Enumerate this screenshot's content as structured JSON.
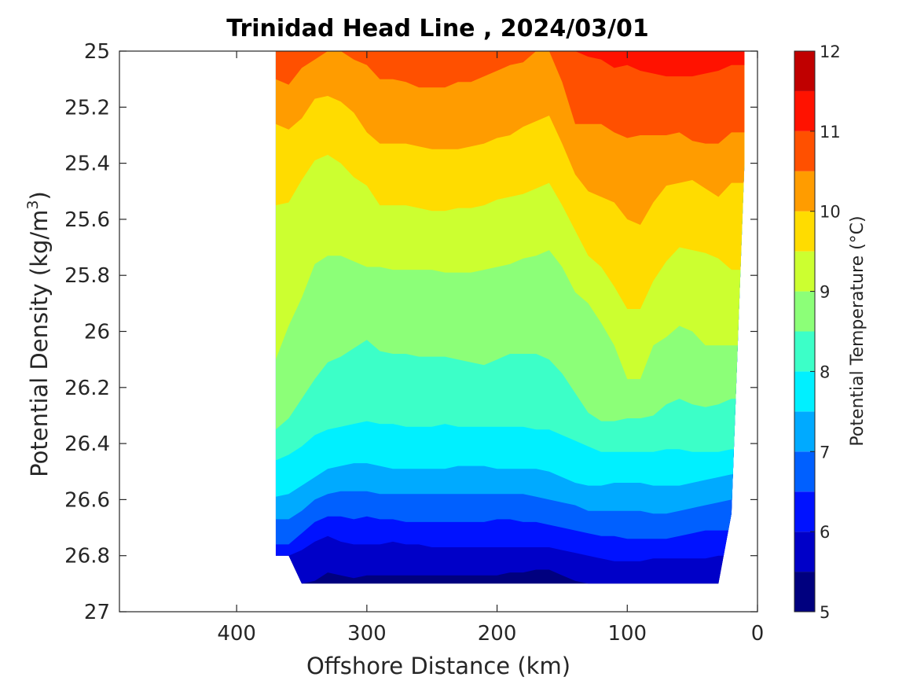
{
  "chart_data": {
    "type": "contour",
    "title": "Trinidad Head Line , 2024/03/01",
    "xlabel": "Offshore Distance (km)",
    "ylabel_main": "Potential Density (kg/m",
    "ylabel_sup": "3",
    "ylabel_end": ")",
    "colorbar_label": "Potential Temperature (°C)",
    "xlim": [
      490,
      0
    ],
    "x_reversed": true,
    "ylim": [
      25.0,
      27.0
    ],
    "y_reversed": true,
    "xticks": [
      400,
      300,
      200,
      100,
      0
    ],
    "xtick_labels": [
      "400",
      "300",
      "200",
      "100",
      "0"
    ],
    "yticks": [
      25.0,
      25.2,
      25.4,
      25.6,
      25.8,
      26.0,
      26.2,
      26.4,
      26.6,
      26.8,
      27.0
    ],
    "ytick_labels": [
      "25",
      "25.2",
      "25.4",
      "25.6",
      "25.8",
      "26",
      "26.2",
      "26.4",
      "26.6",
      "26.8",
      "27"
    ],
    "colorbar_range": [
      5,
      12
    ],
    "colorbar_ticks": [
      5,
      6,
      7,
      8,
      9,
      10,
      11,
      12
    ],
    "colorbar_tick_labels": [
      "5",
      "6",
      "7",
      "8",
      "9",
      "10",
      "11",
      "12"
    ],
    "levels": [
      5.0,
      5.5,
      6.0,
      6.5,
      7.0,
      7.5,
      8.0,
      8.5,
      9.0,
      9.5,
      10.0,
      10.5,
      11.0,
      11.5,
      12.0
    ],
    "colors": [
      "#00007f",
      "#0000c8",
      "#0012ff",
      "#0060ff",
      "#00aaff",
      "#00f0ff",
      "#3cffc8",
      "#8cff78",
      "#ccff30",
      "#ffdc00",
      "#ff9c00",
      "#ff5000",
      "#ff1200",
      "#c00000"
    ],
    "data_domain": {
      "distances": [
        370,
        360,
        350,
        340,
        330,
        320,
        310,
        300,
        290,
        280,
        270,
        260,
        250,
        240,
        230,
        220,
        210,
        200,
        190,
        180,
        170,
        160,
        150,
        140,
        130,
        120,
        110,
        100,
        90,
        80,
        70,
        60,
        50,
        40,
        30,
        20,
        10
      ],
      "max_density": [
        26.8,
        26.8,
        26.9,
        26.9,
        26.9,
        26.9,
        26.9,
        26.9,
        26.9,
        26.9,
        26.9,
        26.9,
        26.9,
        26.9,
        26.9,
        26.9,
        26.9,
        26.9,
        26.9,
        26.9,
        26.9,
        26.9,
        26.9,
        26.9,
        26.9,
        26.9,
        26.9,
        26.9,
        26.9,
        26.9,
        26.9,
        26.9,
        26.9,
        26.9,
        26.9,
        26.65,
        25.4
      ]
    },
    "isotherms": [
      {
        "level": 5.5,
        "density": [
          26.9,
          26.9,
          26.9,
          26.89,
          26.86,
          26.87,
          26.88,
          26.87,
          26.87,
          26.87,
          26.87,
          26.87,
          26.87,
          26.87,
          26.87,
          26.87,
          26.87,
          26.87,
          26.86,
          26.86,
          26.85,
          26.85,
          26.87,
          26.89,
          26.9,
          26.9,
          26.9,
          26.9,
          26.9,
          26.9,
          26.9,
          26.9,
          26.9,
          26.9,
          26.9,
          26.9,
          26.9
        ]
      },
      {
        "level": 6.0,
        "density": [
          26.8,
          26.8,
          26.78,
          26.75,
          26.73,
          26.75,
          26.76,
          26.76,
          26.76,
          26.75,
          26.76,
          26.76,
          26.77,
          26.77,
          26.77,
          26.77,
          26.77,
          26.77,
          26.77,
          26.77,
          26.77,
          26.77,
          26.78,
          26.79,
          26.8,
          26.81,
          26.82,
          26.82,
          26.82,
          26.81,
          26.81,
          26.81,
          26.81,
          26.81,
          26.8,
          26.8,
          26.8
        ]
      },
      {
        "level": 6.5,
        "density": [
          26.76,
          26.76,
          26.72,
          26.68,
          26.66,
          26.66,
          26.67,
          26.66,
          26.67,
          26.67,
          26.68,
          26.68,
          26.68,
          26.68,
          26.68,
          26.68,
          26.68,
          26.67,
          26.67,
          26.68,
          26.68,
          26.69,
          26.7,
          26.71,
          26.72,
          26.73,
          26.73,
          26.74,
          26.74,
          26.74,
          26.74,
          26.73,
          26.72,
          26.71,
          26.71,
          26.71,
          26.71
        ]
      },
      {
        "level": 7.0,
        "density": [
          26.67,
          26.67,
          26.64,
          26.6,
          26.58,
          26.57,
          26.57,
          26.57,
          26.58,
          26.58,
          26.58,
          26.58,
          26.58,
          26.58,
          26.58,
          26.58,
          26.58,
          26.58,
          26.58,
          26.58,
          26.59,
          26.6,
          26.61,
          26.62,
          26.64,
          26.64,
          26.64,
          26.64,
          26.64,
          26.65,
          26.65,
          26.64,
          26.63,
          26.62,
          26.61,
          26.6,
          26.6
        ]
      },
      {
        "level": 7.5,
        "density": [
          26.59,
          26.58,
          26.55,
          26.52,
          26.49,
          26.48,
          26.47,
          26.47,
          26.48,
          26.49,
          26.49,
          26.49,
          26.49,
          26.49,
          26.48,
          26.48,
          26.48,
          26.49,
          26.49,
          26.49,
          26.49,
          26.5,
          26.52,
          26.54,
          26.55,
          26.55,
          26.54,
          26.54,
          26.54,
          26.55,
          26.55,
          26.55,
          26.54,
          26.53,
          26.52,
          26.51,
          26.51
        ]
      },
      {
        "level": 8.0,
        "density": [
          26.46,
          26.44,
          26.41,
          26.37,
          26.35,
          26.34,
          26.33,
          26.32,
          26.33,
          26.33,
          26.34,
          26.34,
          26.34,
          26.33,
          26.34,
          26.34,
          26.34,
          26.34,
          26.34,
          26.34,
          26.35,
          26.35,
          26.37,
          26.39,
          26.41,
          26.43,
          26.43,
          26.43,
          26.43,
          26.43,
          26.42,
          26.42,
          26.43,
          26.43,
          26.43,
          26.42,
          26.42
        ]
      },
      {
        "level": 8.5,
        "density": [
          26.35,
          26.31,
          26.24,
          26.17,
          26.11,
          26.09,
          26.06,
          26.03,
          26.07,
          26.08,
          26.08,
          26.09,
          26.09,
          26.09,
          26.1,
          26.11,
          26.12,
          26.1,
          26.08,
          26.08,
          26.08,
          26.1,
          26.15,
          26.22,
          26.29,
          26.32,
          26.32,
          26.31,
          26.31,
          26.3,
          26.26,
          26.24,
          26.26,
          26.27,
          26.26,
          26.24,
          26.24
        ]
      },
      {
        "level": 9.0,
        "density": [
          26.1,
          25.98,
          25.88,
          25.76,
          25.73,
          25.73,
          25.75,
          25.77,
          25.77,
          25.78,
          25.78,
          25.78,
          25.78,
          25.79,
          25.79,
          25.79,
          25.78,
          25.77,
          25.76,
          25.74,
          25.73,
          25.71,
          25.77,
          25.86,
          25.9,
          25.97,
          26.05,
          26.17,
          26.17,
          26.05,
          26.02,
          25.98,
          26.0,
          26.05,
          26.05,
          26.05,
          26.05
        ]
      },
      {
        "level": 9.5,
        "density": [
          25.55,
          25.54,
          25.46,
          25.39,
          25.37,
          25.4,
          25.45,
          25.48,
          25.55,
          25.55,
          25.55,
          25.56,
          25.57,
          25.57,
          25.56,
          25.56,
          25.55,
          25.53,
          25.52,
          25.51,
          25.49,
          25.47,
          25.55,
          25.64,
          25.73,
          25.77,
          25.84,
          25.92,
          25.92,
          25.82,
          25.75,
          25.7,
          25.71,
          25.72,
          25.74,
          25.78,
          25.78
        ]
      },
      {
        "level": 10.0,
        "density": [
          25.26,
          25.28,
          25.24,
          25.17,
          25.16,
          25.18,
          25.22,
          25.29,
          25.33,
          25.33,
          25.33,
          25.34,
          25.35,
          25.35,
          25.35,
          25.34,
          25.33,
          25.31,
          25.3,
          25.27,
          25.25,
          25.23,
          25.33,
          25.44,
          25.5,
          25.52,
          25.54,
          25.6,
          25.62,
          25.54,
          25.48,
          25.47,
          25.46,
          25.49,
          25.52,
          25.47,
          25.47
        ]
      },
      {
        "level": 10.5,
        "density": [
          25.1,
          25.12,
          25.06,
          25.03,
          25.0,
          25.0,
          25.03,
          25.05,
          25.1,
          25.1,
          25.11,
          25.13,
          25.13,
          25.13,
          25.11,
          25.11,
          25.09,
          25.07,
          25.05,
          25.04,
          25.0,
          25.0,
          25.11,
          25.26,
          25.26,
          25.26,
          25.29,
          25.31,
          25.3,
          25.3,
          25.3,
          25.29,
          25.32,
          25.33,
          25.33,
          25.29,
          25.29
        ]
      },
      {
        "level": 11.0,
        "density": [
          25.0,
          25.0,
          25.0,
          25.0,
          25.0,
          25.0,
          25.0,
          25.0,
          25.0,
          25.0,
          25.0,
          25.0,
          25.0,
          25.0,
          25.0,
          25.0,
          25.0,
          25.0,
          25.0,
          25.0,
          25.0,
          25.0,
          25.0,
          25.0,
          25.02,
          25.03,
          25.06,
          25.05,
          25.07,
          25.08,
          25.09,
          25.09,
          25.09,
          25.08,
          25.07,
          25.05,
          25.05
        ]
      },
      {
        "level": 11.5,
        "density": [
          25.0,
          25.0,
          25.0,
          25.0,
          25.0,
          25.0,
          25.0,
          25.0,
          25.0,
          25.0,
          25.0,
          25.0,
          25.0,
          25.0,
          25.0,
          25.0,
          25.0,
          25.0,
          25.0,
          25.0,
          25.0,
          25.0,
          25.0,
          25.0,
          25.0,
          25.0,
          25.0,
          25.0,
          25.0,
          25.0,
          25.0,
          25.0,
          25.0,
          25.0,
          25.0,
          25.0,
          25.0
        ]
      }
    ]
  }
}
